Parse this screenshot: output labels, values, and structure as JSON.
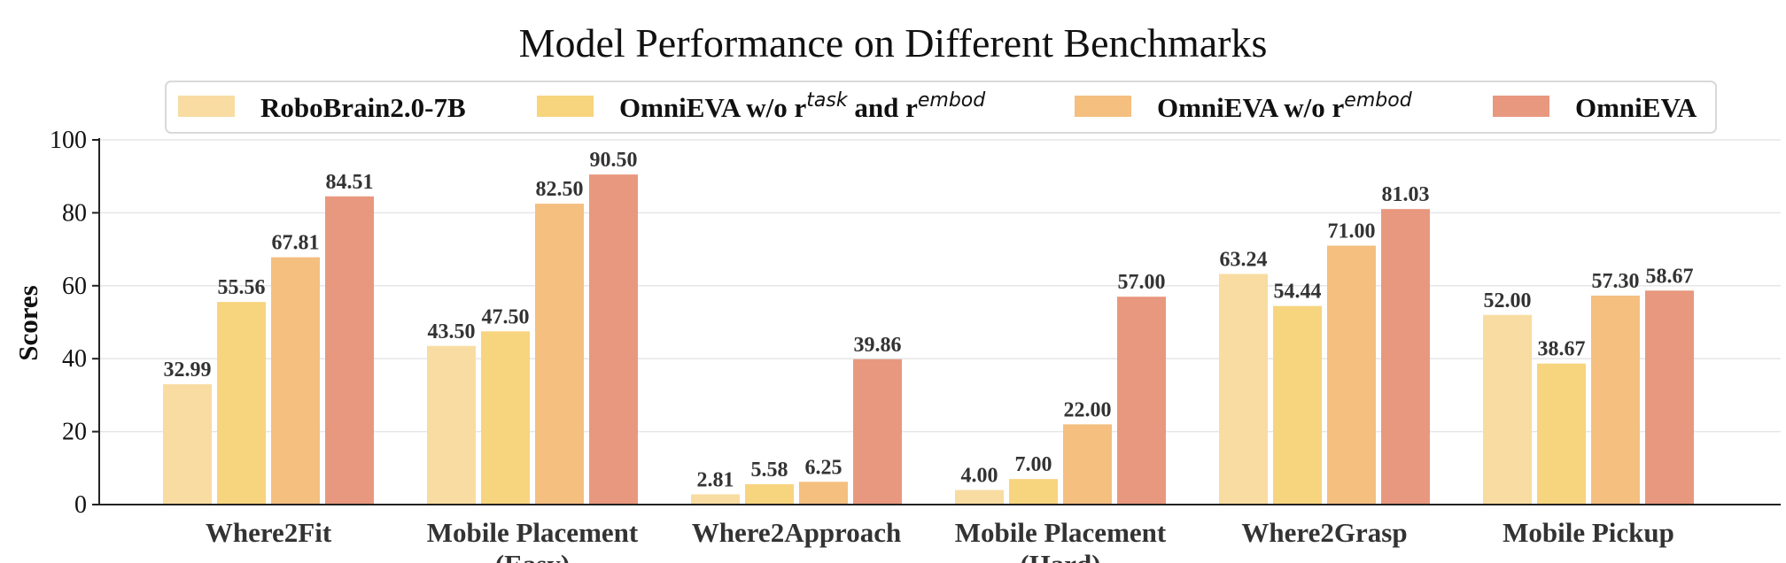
{
  "chart_data": {
    "type": "bar",
    "title": "Model Performance on Different Benchmarks",
    "xlabel": "",
    "ylabel": "Scores",
    "ylim": [
      0,
      100
    ],
    "yticks": [
      0,
      20,
      40,
      60,
      80,
      100
    ],
    "grid": true,
    "legend_position": "top",
    "categories": [
      "Where2Fit",
      "Mobile Placement\n(Easy)",
      "Where2Approach",
      "Mobile Placement\n(Hard)",
      "Where2Grasp",
      "Mobile Pickup"
    ],
    "series": [
      {
        "name": "RoboBrain2.0-7B",
        "name_parts": [
          "RoboBrain2.0-7B"
        ],
        "color": "#F8DCA2",
        "values": [
          32.99,
          43.5,
          2.81,
          4.0,
          63.24,
          52.0
        ],
        "labels": [
          "32.99",
          "43.50",
          "2.81",
          "4.00",
          "63.24",
          "52.00"
        ]
      },
      {
        "name": "OmniEVA w/o r^task and r^embod",
        "name_parts": [
          "OmniEVA w/o r",
          "task",
          " and r",
          "embod"
        ],
        "color": "#F7D47E",
        "values": [
          55.56,
          47.5,
          5.58,
          7.0,
          54.44,
          38.67
        ],
        "labels": [
          "55.56",
          "47.50",
          "5.58",
          "7.00",
          "54.44",
          "38.67"
        ]
      },
      {
        "name": "OmniEVA w/o r^embod",
        "name_parts": [
          "OmniEVA w/o r",
          "embod"
        ],
        "color": "#F4BF7F",
        "values": [
          67.81,
          82.5,
          6.25,
          22.0,
          71.0,
          57.3
        ],
        "labels": [
          "67.81",
          "82.50",
          "6.25",
          "22.00",
          "71.00",
          "57.30"
        ]
      },
      {
        "name": "OmniEVA",
        "name_parts": [
          "OmniEVA"
        ],
        "color": "#E8987E",
        "values": [
          84.51,
          90.5,
          39.86,
          57.0,
          81.03,
          58.67
        ],
        "labels": [
          "84.51",
          "90.50",
          "39.86",
          "57.00",
          "81.03",
          "58.67"
        ]
      }
    ]
  }
}
